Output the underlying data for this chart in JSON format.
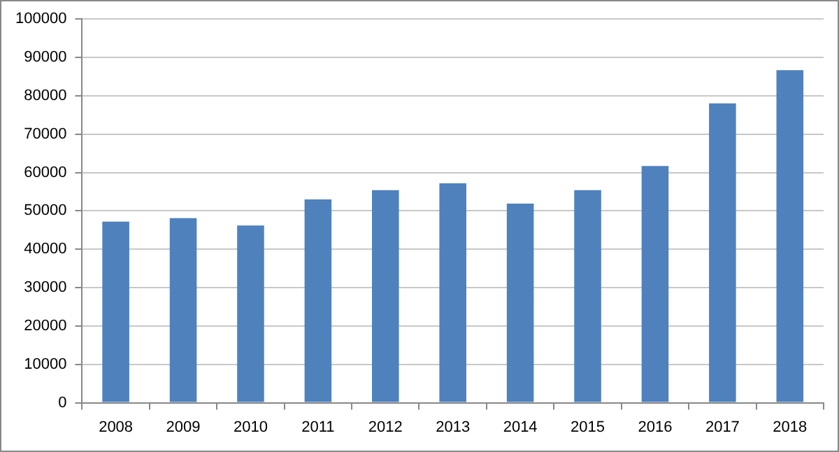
{
  "chart_data": {
    "type": "bar",
    "categories": [
      "2008",
      "2009",
      "2010",
      "2011",
      "2012",
      "2013",
      "2014",
      "2015",
      "2016",
      "2017",
      "2018"
    ],
    "values": [
      47200,
      48100,
      46200,
      53000,
      55400,
      57200,
      51900,
      55400,
      61700,
      78000,
      86700
    ],
    "color": "#4f81bd",
    "ylim": [
      0,
      100000
    ],
    "yticks": [
      0,
      10000,
      20000,
      30000,
      40000,
      50000,
      60000,
      70000,
      80000,
      90000,
      100000
    ],
    "grid": "y",
    "legend": false
  }
}
